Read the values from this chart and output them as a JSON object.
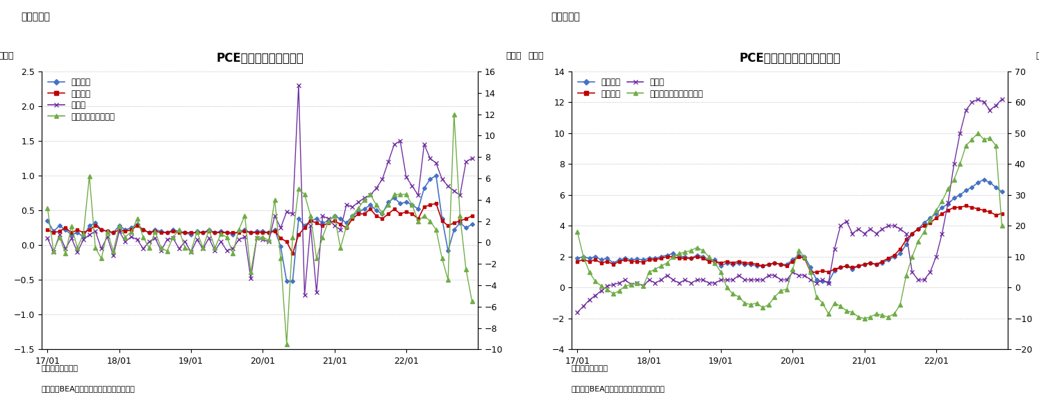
{
  "chart1": {
    "title": "PCE価格指数（前月比）",
    "label": "（図表６）",
    "ylabel_left": "（％）",
    "ylabel_right": "（％）",
    "ylim_left": [
      -1.5,
      2.5
    ],
    "ylim_right": [
      -10,
      16
    ],
    "yticks_left": [
      -1.5,
      -1.0,
      -0.5,
      0.0,
      0.5,
      1.0,
      1.5,
      2.0,
      2.5
    ],
    "yticks_right": [
      -10,
      -8,
      -6,
      -4,
      -2,
      0,
      2,
      4,
      6,
      8,
      10,
      12,
      14,
      16
    ],
    "note1": "（注）季節調整済",
    "note2": "（資料）BEAよりニッセイ基礎研究所作成",
    "series": {
      "総合指数": {
        "color": "#4472C4",
        "marker": "D",
        "markersize": 3,
        "linewidth": 1.2,
        "axis": "left",
        "values": [
          0.35,
          0.2,
          0.28,
          0.22,
          0.15,
          0.18,
          0.12,
          0.28,
          0.32,
          0.22,
          0.2,
          0.18,
          0.28,
          0.22,
          0.25,
          0.3,
          0.22,
          0.18,
          0.22,
          0.2,
          0.18,
          0.22,
          0.2,
          0.18,
          0.15,
          0.2,
          0.18,
          0.22,
          0.18,
          0.2,
          0.18,
          0.15,
          0.2,
          0.22,
          0.18,
          0.2,
          0.2,
          0.18,
          0.22,
          -0.02,
          -0.52,
          -0.52,
          0.38,
          0.28,
          0.35,
          0.38,
          0.32,
          0.35,
          0.42,
          0.38,
          0.32,
          0.42,
          0.48,
          0.52,
          0.58,
          0.5,
          0.45,
          0.62,
          0.68,
          0.6,
          0.62,
          0.58,
          0.52,
          0.82,
          0.95,
          1.0,
          0.38,
          -0.08,
          0.22,
          0.32,
          0.25,
          0.3
        ]
      },
      "コア指数": {
        "color": "#C00000",
        "marker": "s",
        "markersize": 3,
        "linewidth": 1.2,
        "axis": "left",
        "values": [
          0.22,
          0.18,
          0.2,
          0.25,
          0.18,
          0.22,
          0.18,
          0.22,
          0.28,
          0.22,
          0.2,
          0.18,
          0.22,
          0.2,
          0.22,
          0.28,
          0.22,
          0.18,
          0.2,
          0.18,
          0.18,
          0.2,
          0.18,
          0.18,
          0.18,
          0.18,
          0.18,
          0.2,
          0.18,
          0.18,
          0.18,
          0.18,
          0.18,
          0.2,
          0.18,
          0.18,
          0.18,
          0.18,
          0.2,
          0.1,
          0.05,
          -0.12,
          0.15,
          0.25,
          0.35,
          0.32,
          0.28,
          0.32,
          0.35,
          0.3,
          0.25,
          0.38,
          0.45,
          0.45,
          0.52,
          0.42,
          0.38,
          0.45,
          0.52,
          0.45,
          0.48,
          0.45,
          0.38,
          0.55,
          0.58,
          0.6,
          0.35,
          0.28,
          0.32,
          0.35,
          0.38,
          0.42
        ]
      },
      "食料品": {
        "color": "#7030A0",
        "marker": "x",
        "markersize": 4,
        "linewidth": 1.0,
        "axis": "left",
        "values": [
          0.1,
          -0.1,
          0.15,
          -0.05,
          0.1,
          -0.1,
          0.08,
          0.15,
          0.2,
          -0.05,
          0.12,
          -0.15,
          0.2,
          0.05,
          0.12,
          0.08,
          -0.05,
          0.05,
          0.1,
          -0.08,
          0.08,
          0.1,
          -0.05,
          0.05,
          -0.1,
          0.08,
          -0.05,
          0.1,
          -0.08,
          0.05,
          -0.08,
          -0.05,
          0.08,
          0.12,
          -0.48,
          0.1,
          0.08,
          0.05,
          0.42,
          0.25,
          0.48,
          0.45,
          2.3,
          -0.72,
          0.28,
          -0.68,
          0.42,
          0.38,
          0.28,
          0.22,
          0.58,
          0.55,
          0.62,
          0.68,
          0.72,
          0.82,
          0.95,
          1.2,
          1.45,
          1.5,
          0.98,
          0.85,
          0.72,
          1.45,
          1.25,
          1.18,
          0.95,
          0.85,
          0.78,
          0.72,
          1.2,
          1.25
        ]
      },
      "エネルギー（右軸）": {
        "color": "#70AD47",
        "marker": "^",
        "markersize": 4,
        "linewidth": 1.0,
        "axis": "right",
        "values": [
          3.2,
          -0.8,
          0.5,
          -1.0,
          1.5,
          -0.5,
          0.8,
          6.2,
          -0.5,
          -1.5,
          1.0,
          -0.8,
          1.5,
          0.5,
          1.0,
          2.2,
          0.5,
          -0.5,
          1.0,
          -0.5,
          -0.8,
          0.5,
          1.2,
          -0.5,
          -0.8,
          1.0,
          -0.5,
          1.2,
          -0.5,
          0.8,
          0.5,
          -1.0,
          1.2,
          2.5,
          -2.8,
          0.5,
          0.5,
          0.2,
          4.0,
          -1.5,
          -9.5,
          0.5,
          5.0,
          4.5,
          2.5,
          -1.5,
          0.5,
          2.0,
          2.5,
          -0.5,
          1.5,
          2.5,
          3.2,
          4.0,
          4.5,
          3.5,
          2.8,
          3.5,
          4.5,
          4.5,
          4.5,
          3.5,
          2.0,
          2.5,
          2.0,
          1.2,
          -1.5,
          -3.5,
          12.0,
          2.5,
          -2.5,
          -5.5
        ]
      }
    }
  },
  "chart2": {
    "title": "PCE価格指数（前年同月比）",
    "label": "（図表７）",
    "ylabel_left": "（％）",
    "ylabel_right": "（％）",
    "ylim_left": [
      -4,
      14
    ],
    "ylim_right": [
      -20,
      70
    ],
    "yticks_left": [
      -4,
      -2,
      0,
      2,
      4,
      6,
      8,
      10,
      12,
      14
    ],
    "yticks_right": [
      -20,
      -10,
      0,
      10,
      20,
      30,
      40,
      50,
      60,
      70
    ],
    "note1": "（注）季節調整済",
    "note2": "（資料）BEAよりニッセイ基礎研究所作成",
    "series": {
      "総合指数": {
        "color": "#4472C4",
        "marker": "D",
        "markersize": 3,
        "linewidth": 1.2,
        "axis": "left",
        "values": [
          1.9,
          2.0,
          1.9,
          2.0,
          1.8,
          1.9,
          1.6,
          1.8,
          1.9,
          1.8,
          1.85,
          1.8,
          1.9,
          1.9,
          2.0,
          2.1,
          2.2,
          2.0,
          2.0,
          1.9,
          2.1,
          2.0,
          1.8,
          1.8,
          1.4,
          1.6,
          1.5,
          1.6,
          1.5,
          1.5,
          1.4,
          1.4,
          1.5,
          1.6,
          1.5,
          1.5,
          1.8,
          2.1,
          2.0,
          1.3,
          0.5,
          0.4,
          0.35,
          1.1,
          1.3,
          1.4,
          1.2,
          1.4,
          1.5,
          1.6,
          1.5,
          1.6,
          1.8,
          2.0,
          2.2,
          2.8,
          3.5,
          3.8,
          4.2,
          4.5,
          4.8,
          5.2,
          5.4,
          5.8,
          6.0,
          6.3,
          6.5,
          6.8,
          7.0,
          6.8,
          6.5,
          6.2
        ]
      },
      "コア指数": {
        "color": "#C00000",
        "marker": "s",
        "markersize": 3,
        "linewidth": 1.2,
        "axis": "left",
        "values": [
          1.7,
          1.8,
          1.7,
          1.8,
          1.6,
          1.7,
          1.5,
          1.7,
          1.8,
          1.7,
          1.7,
          1.65,
          1.8,
          1.8,
          1.9,
          2.0,
          2.0,
          1.9,
          1.9,
          1.9,
          2.0,
          1.9,
          1.7,
          1.7,
          1.6,
          1.7,
          1.6,
          1.7,
          1.6,
          1.6,
          1.5,
          1.4,
          1.5,
          1.6,
          1.5,
          1.4,
          1.7,
          2.0,
          1.9,
          1.0,
          1.0,
          1.1,
          1.0,
          1.2,
          1.3,
          1.4,
          1.3,
          1.4,
          1.5,
          1.6,
          1.5,
          1.7,
          1.9,
          2.1,
          2.5,
          3.1,
          3.5,
          3.8,
          4.0,
          4.2,
          4.5,
          4.8,
          5.0,
          5.2,
          5.2,
          5.3,
          5.2,
          5.1,
          5.0,
          4.9,
          4.7,
          4.8
        ]
      },
      "食料品": {
        "color": "#7030A0",
        "marker": "x",
        "markersize": 4,
        "linewidth": 1.0,
        "axis": "left",
        "values": [
          -1.6,
          -1.2,
          -0.8,
          -0.5,
          -0.2,
          0.1,
          0.2,
          0.3,
          0.5,
          0.2,
          0.3,
          0.1,
          0.5,
          0.3,
          0.5,
          0.8,
          0.5,
          0.3,
          0.5,
          0.3,
          0.5,
          0.5,
          0.3,
          0.3,
          0.5,
          0.5,
          0.5,
          0.8,
          0.5,
          0.5,
          0.5,
          0.5,
          0.8,
          0.8,
          0.5,
          0.5,
          1.0,
          0.8,
          0.8,
          0.5,
          0.3,
          0.5,
          0.3,
          2.5,
          4.0,
          4.3,
          3.5,
          3.8,
          3.5,
          3.8,
          3.5,
          3.8,
          4.0,
          4.0,
          3.8,
          3.5,
          1.0,
          0.5,
          0.5,
          1.0,
          2.0,
          3.5,
          5.5,
          8.0,
          10.0,
          11.5,
          12.0,
          12.2,
          12.0,
          11.5,
          11.8,
          12.2
        ]
      },
      "エネルギー関連（右軸）": {
        "color": "#70AD47",
        "marker": "^",
        "markersize": 4,
        "linewidth": 1.0,
        "axis": "right",
        "values": [
          18.0,
          10.0,
          5.0,
          2.0,
          0.5,
          -0.5,
          -2.0,
          -1.0,
          0.5,
          1.0,
          1.5,
          0.5,
          5.0,
          6.0,
          7.0,
          8.0,
          10.0,
          11.0,
          11.5,
          12.0,
          13.0,
          12.0,
          10.0,
          8.0,
          5.0,
          0.0,
          -2.0,
          -3.0,
          -5.0,
          -5.5,
          -5.0,
          -6.5,
          -5.5,
          -3.0,
          -1.0,
          -0.5,
          6.0,
          12.0,
          10.0,
          5.0,
          -3.0,
          -5.0,
          -8.5,
          -5.0,
          -6.0,
          -7.5,
          -8.0,
          -9.5,
          -10.0,
          -9.5,
          -8.5,
          -9.0,
          -9.5,
          -8.5,
          -5.5,
          4.0,
          10.0,
          15.0,
          18.0,
          22.0,
          25.0,
          28.0,
          32.0,
          35.0,
          40.0,
          46.0,
          48.0,
          50.0,
          48.0,
          48.5,
          46.0,
          20.0
        ]
      }
    }
  },
  "x_labels": [
    "17/01",
    "18/01",
    "19/01",
    "20/01",
    "21/01",
    "22/01"
  ],
  "n_points": 72,
  "background_color": "#FFFFFF",
  "grid_color": "#AAAAAA"
}
